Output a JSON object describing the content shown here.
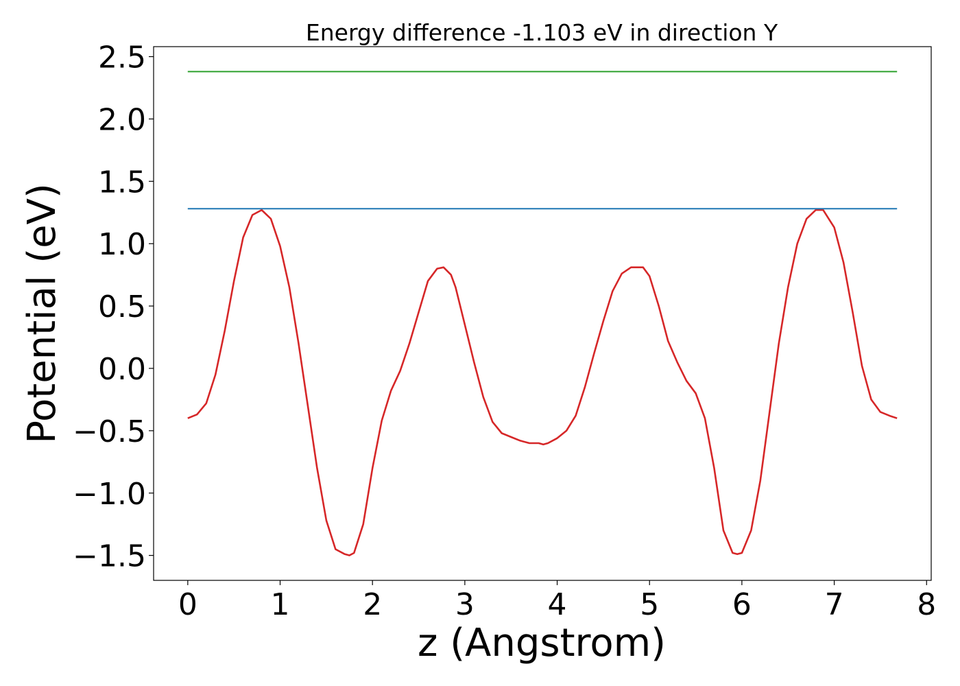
{
  "chart_data": {
    "type": "line",
    "title": "Energy difference -1.103 eV in direction Y",
    "xlabel": "z (Angstrom)",
    "ylabel": "Potential (eV)",
    "xlim": [
      -0.37,
      8.05
    ],
    "ylim": [
      -1.7,
      2.58
    ],
    "xticks": [
      0,
      1,
      2,
      3,
      4,
      5,
      6,
      7,
      8
    ],
    "yticks": [
      -1.5,
      -1.0,
      -0.5,
      0.0,
      0.5,
      1.0,
      1.5,
      2.0,
      2.5
    ],
    "ytick_labels": [
      "−1.5",
      "−1.0",
      "−0.5",
      "0.0",
      "0.5",
      "1.0",
      "1.5",
      "2.0",
      "2.5"
    ],
    "xtick_labels": [
      "0",
      "1",
      "2",
      "3",
      "4",
      "5",
      "6",
      "7",
      "8"
    ],
    "grid": false,
    "series": [
      {
        "color": "#d62728",
        "x": [
          0.0,
          0.1,
          0.2,
          0.3,
          0.4,
          0.5,
          0.6,
          0.7,
          0.8,
          0.9,
          1.0,
          1.1,
          1.2,
          1.3,
          1.4,
          1.5,
          1.6,
          1.7,
          1.75,
          1.8,
          1.9,
          2.0,
          2.1,
          2.2,
          2.3,
          2.4,
          2.5,
          2.6,
          2.7,
          2.77,
          2.85,
          2.9,
          3.0,
          3.1,
          3.2,
          3.3,
          3.4,
          3.5,
          3.6,
          3.7,
          3.8,
          3.85,
          3.9,
          4.0,
          4.1,
          4.2,
          4.3,
          4.4,
          4.5,
          4.6,
          4.7,
          4.8,
          4.93,
          5.0,
          5.1,
          5.2,
          5.3,
          5.4,
          5.5,
          5.6,
          5.7,
          5.8,
          5.9,
          5.95,
          6.0,
          6.1,
          6.2,
          6.3,
          6.4,
          6.5,
          6.6,
          6.7,
          6.8,
          6.88,
          7.0,
          7.1,
          7.2,
          7.3,
          7.4,
          7.5,
          7.6,
          7.68
        ],
        "y": [
          -0.4,
          -0.37,
          -0.28,
          -0.05,
          0.3,
          0.7,
          1.05,
          1.23,
          1.27,
          1.2,
          0.98,
          0.65,
          0.2,
          -0.3,
          -0.8,
          -1.22,
          -1.45,
          -1.49,
          -1.5,
          -1.48,
          -1.25,
          -0.8,
          -0.42,
          -0.18,
          -0.02,
          0.2,
          0.45,
          0.7,
          0.8,
          0.81,
          0.75,
          0.65,
          0.35,
          0.05,
          -0.23,
          -0.43,
          -0.52,
          -0.55,
          -0.58,
          -0.6,
          -0.6,
          -0.61,
          -0.6,
          -0.56,
          -0.5,
          -0.38,
          -0.15,
          0.12,
          0.38,
          0.62,
          0.76,
          0.81,
          0.81,
          0.74,
          0.5,
          0.22,
          0.05,
          -0.1,
          -0.2,
          -0.4,
          -0.8,
          -1.3,
          -1.48,
          -1.49,
          -1.48,
          -1.3,
          -0.9,
          -0.35,
          0.2,
          0.65,
          1.0,
          1.2,
          1.27,
          1.27,
          1.13,
          0.85,
          0.45,
          0.02,
          -0.25,
          -0.35,
          -0.38,
          -0.4
        ]
      },
      {
        "color": "#1f77b4",
        "x": [
          0.0,
          7.68
        ],
        "y": [
          1.28,
          1.28
        ]
      },
      {
        "color": "#2ca02c",
        "x": [
          0.0,
          7.68
        ],
        "y": [
          2.38,
          2.38
        ]
      }
    ]
  }
}
